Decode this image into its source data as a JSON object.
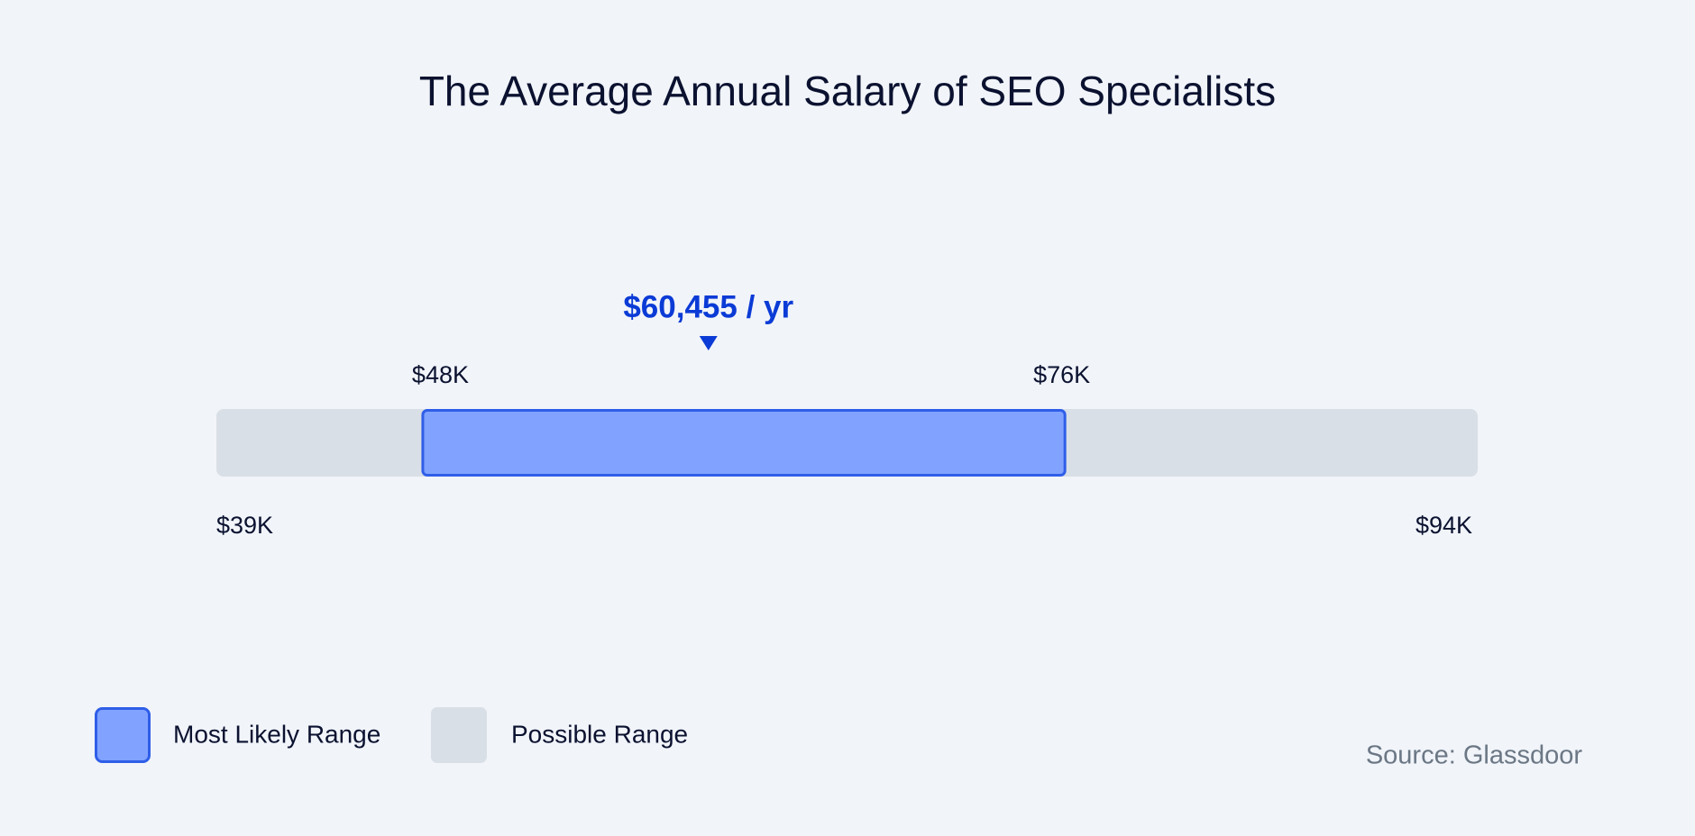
{
  "chart_data": {
    "type": "range",
    "title": "The Average Annual Salary of SEO Specialists",
    "xlim": [
      39000,
      94000
    ],
    "possible_range": {
      "name": "Possible Range",
      "values": [
        39000,
        94000
      ],
      "value_labels": [
        "$39K",
        "$94K"
      ],
      "color": "#d9dfe6"
    },
    "likely_range": {
      "name": "Most Likely Range",
      "values": [
        48000,
        76000
      ],
      "value_labels": [
        "$48K",
        "$76K"
      ],
      "color": "#81a3ff",
      "border": "#2f5ee8"
    },
    "average": {
      "value": 60455,
      "label": "$60,455 / yr",
      "color": "#0b3bd6"
    }
  },
  "source": "Source: Glassdoor"
}
